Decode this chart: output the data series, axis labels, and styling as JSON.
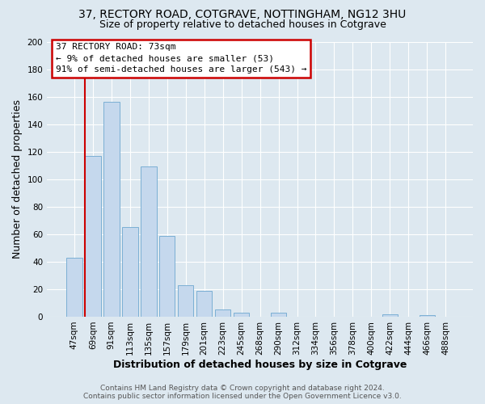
{
  "title": "37, RECTORY ROAD, COTGRAVE, NOTTINGHAM, NG12 3HU",
  "subtitle": "Size of property relative to detached houses in Cotgrave",
  "xlabel": "Distribution of detached houses by size in Cotgrave",
  "ylabel": "Number of detached properties",
  "bar_labels": [
    "47sqm",
    "69sqm",
    "91sqm",
    "113sqm",
    "135sqm",
    "157sqm",
    "179sqm",
    "201sqm",
    "223sqm",
    "245sqm",
    "268sqm",
    "290sqm",
    "312sqm",
    "334sqm",
    "356sqm",
    "378sqm",
    "400sqm",
    "422sqm",
    "444sqm",
    "466sqm",
    "488sqm"
  ],
  "bar_values": [
    43,
    117,
    156,
    65,
    109,
    59,
    23,
    19,
    5,
    3,
    0,
    3,
    0,
    0,
    0,
    0,
    0,
    2,
    0,
    1,
    0
  ],
  "bar_color": "#c5d8ed",
  "bar_edge_color": "#7bafd4",
  "ylim": [
    0,
    200
  ],
  "yticks": [
    0,
    20,
    40,
    60,
    80,
    100,
    120,
    140,
    160,
    180,
    200
  ],
  "property_line_label": "37 RECTORY ROAD: 73sqm",
  "annotation_line1": "← 9% of detached houses are smaller (53)",
  "annotation_line2": "91% of semi-detached houses are larger (543) →",
  "red_line_color": "#cc0000",
  "annotation_box_edge_color": "#cc0000",
  "footer_line1": "Contains HM Land Registry data © Crown copyright and database right 2024.",
  "footer_line2": "Contains public sector information licensed under the Open Government Licence v3.0.",
  "background_color": "#dde8f0",
  "plot_bg_color": "#dde8f0",
  "grid_color": "#ffffff",
  "title_fontsize": 10,
  "subtitle_fontsize": 9,
  "axis_label_fontsize": 9,
  "tick_fontsize": 7.5,
  "footer_fontsize": 6.5,
  "annotation_fontsize": 8
}
